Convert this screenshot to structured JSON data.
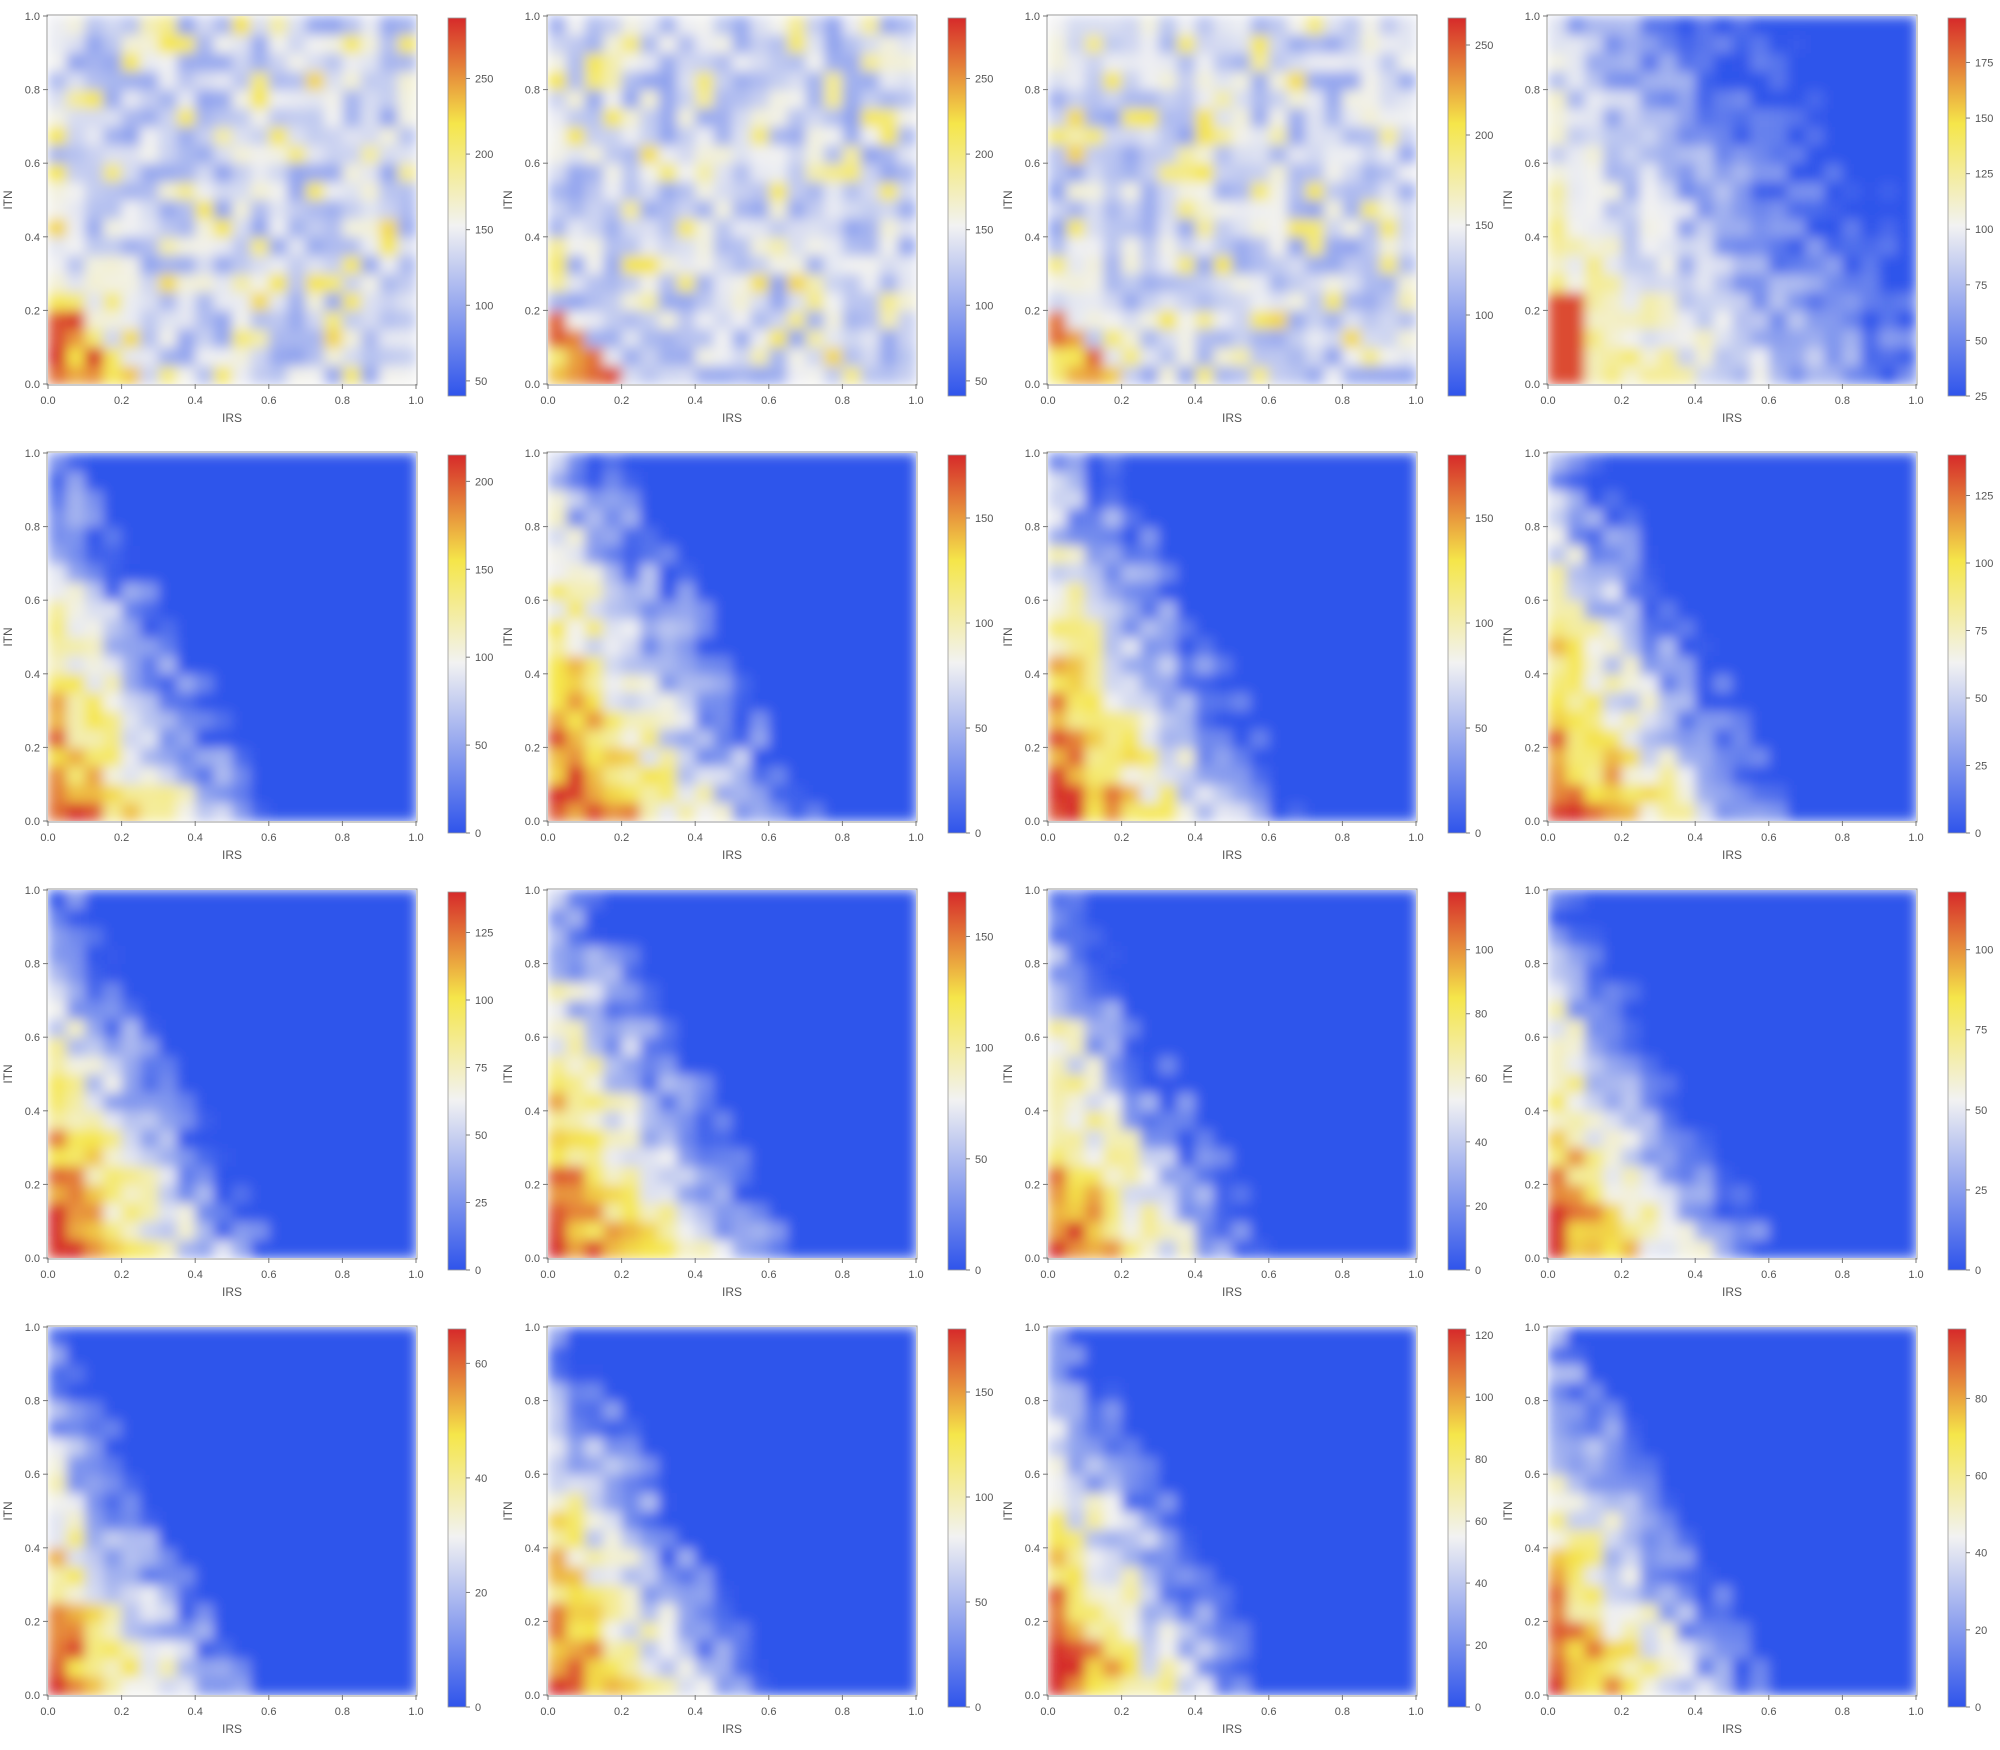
{
  "chart_data": [
    {
      "type": "heatmap",
      "xlabel": "IRS",
      "ylabel": "ITN",
      "xlim": [
        0,
        1
      ],
      "ylim": [
        0,
        1
      ],
      "x_ticks": [
        "0.0",
        "0.2",
        "0.4",
        "0.6",
        "0.8",
        "1.0"
      ],
      "y_ticks": [
        "0.0",
        "0.2",
        "0.4",
        "0.6",
        "0.8",
        "1.0"
      ],
      "colorbar": {
        "min": 40,
        "max": 290,
        "ticks": [
          50,
          100,
          150,
          200,
          250
        ]
      },
      "pattern": "noisy",
      "hot_region": 0.3
    },
    {
      "type": "heatmap",
      "xlabel": "IRS",
      "ylabel": "ITN",
      "xlim": [
        0,
        1
      ],
      "ylim": [
        0,
        1
      ],
      "x_ticks": [
        "0.0",
        "0.2",
        "0.4",
        "0.6",
        "0.8",
        "1.0"
      ],
      "y_ticks": [
        "0.0",
        "0.2",
        "0.4",
        "0.6",
        "0.8",
        "1.0"
      ],
      "colorbar": {
        "min": 40,
        "max": 290,
        "ticks": [
          50,
          100,
          150,
          200,
          250
        ]
      },
      "pattern": "noisy",
      "hot_region": 0.25
    },
    {
      "type": "heatmap",
      "xlabel": "IRS",
      "ylabel": "ITN",
      "xlim": [
        0,
        1
      ],
      "ylim": [
        0,
        1
      ],
      "x_ticks": [
        "0.0",
        "0.2",
        "0.4",
        "0.6",
        "0.8",
        "1.0"
      ],
      "y_ticks": [
        "0.0",
        "0.2",
        "0.4",
        "0.6",
        "0.8",
        "1.0"
      ],
      "colorbar": {
        "min": 55,
        "max": 265,
        "ticks": [
          100,
          150,
          200,
          250
        ]
      },
      "pattern": "noisy",
      "hot_region": 0.25
    },
    {
      "type": "heatmap",
      "xlabel": "IRS",
      "ylabel": "ITN",
      "xlim": [
        0,
        1
      ],
      "ylim": [
        0,
        1
      ],
      "x_ticks": [
        "0.0",
        "0.2",
        "0.4",
        "0.6",
        "0.8",
        "1.0"
      ],
      "y_ticks": [
        "0.0",
        "0.2",
        "0.4",
        "0.6",
        "0.8",
        "1.0"
      ],
      "colorbar": {
        "min": 25,
        "max": 195,
        "ticks": [
          25,
          50,
          75,
          100,
          125,
          150,
          175
        ]
      },
      "pattern": "gradient",
      "hot_region": 0.35
    },
    {
      "type": "heatmap",
      "xlabel": "IRS",
      "ylabel": "ITN",
      "xlim": [
        0,
        1
      ],
      "ylim": [
        0,
        1
      ],
      "x_ticks": [
        "0.0",
        "0.2",
        "0.4",
        "0.6",
        "0.8",
        "1.0"
      ],
      "y_ticks": [
        "0.0",
        "0.2",
        "0.4",
        "0.6",
        "0.8",
        "1.0"
      ],
      "colorbar": {
        "min": 0,
        "max": 215,
        "ticks": [
          0,
          50,
          100,
          150,
          200
        ]
      },
      "pattern": "decay",
      "hot_region": 0.55
    },
    {
      "type": "heatmap",
      "xlabel": "IRS",
      "ylabel": "ITN",
      "xlim": [
        0,
        1
      ],
      "ylim": [
        0,
        1
      ],
      "x_ticks": [
        "0.0",
        "0.2",
        "0.4",
        "0.6",
        "0.8",
        "1.0"
      ],
      "y_ticks": [
        "0.0",
        "0.2",
        "0.4",
        "0.6",
        "0.8",
        "1.0"
      ],
      "colorbar": {
        "min": 0,
        "max": 180,
        "ticks": [
          0,
          50,
          100,
          150
        ]
      },
      "pattern": "decay",
      "hot_region": 0.65
    },
    {
      "type": "heatmap",
      "xlabel": "IRS",
      "ylabel": "ITN",
      "xlim": [
        0,
        1
      ],
      "ylim": [
        0,
        1
      ],
      "x_ticks": [
        "0.0",
        "0.2",
        "0.4",
        "0.6",
        "0.8",
        "1.0"
      ],
      "y_ticks": [
        "0.0",
        "0.2",
        "0.4",
        "0.6",
        "0.8",
        "1.0"
      ],
      "colorbar": {
        "min": 0,
        "max": 180,
        "ticks": [
          0,
          50,
          100,
          150
        ]
      },
      "pattern": "decay",
      "hot_region": 0.62
    },
    {
      "type": "heatmap",
      "xlabel": "IRS",
      "ylabel": "ITN",
      "xlim": [
        0,
        1
      ],
      "ylim": [
        0,
        1
      ],
      "x_ticks": [
        "0.0",
        "0.2",
        "0.4",
        "0.6",
        "0.8",
        "1.0"
      ],
      "y_ticks": [
        "0.0",
        "0.2",
        "0.4",
        "0.6",
        "0.8",
        "1.0"
      ],
      "colorbar": {
        "min": 0,
        "max": 140,
        "ticks": [
          0,
          25,
          50,
          75,
          100,
          125
        ]
      },
      "pattern": "decay",
      "hot_region": 0.6
    },
    {
      "type": "heatmap",
      "xlabel": "IRS",
      "ylabel": "ITN",
      "xlim": [
        0,
        1
      ],
      "ylim": [
        0,
        1
      ],
      "x_ticks": [
        "0.0",
        "0.2",
        "0.4",
        "0.6",
        "0.8",
        "1.0"
      ],
      "y_ticks": [
        "0.0",
        "0.2",
        "0.4",
        "0.6",
        "0.8",
        "1.0"
      ],
      "colorbar": {
        "min": 0,
        "max": 140,
        "ticks": [
          0,
          25,
          50,
          75,
          100,
          125
        ]
      },
      "pattern": "decay",
      "hot_region": 0.55
    },
    {
      "type": "heatmap",
      "xlabel": "IRS",
      "ylabel": "ITN",
      "xlim": [
        0,
        1
      ],
      "ylim": [
        0,
        1
      ],
      "x_ticks": [
        "0.0",
        "0.2",
        "0.4",
        "0.6",
        "0.8",
        "1.0"
      ],
      "y_ticks": [
        "0.0",
        "0.2",
        "0.4",
        "0.6",
        "0.8",
        "1.0"
      ],
      "colorbar": {
        "min": 0,
        "max": 170,
        "ticks": [
          0,
          50,
          100,
          150
        ]
      },
      "pattern": "decay",
      "hot_region": 0.6
    },
    {
      "type": "heatmap",
      "xlabel": "IRS",
      "ylabel": "ITN",
      "xlim": [
        0,
        1
      ],
      "ylim": [
        0,
        1
      ],
      "x_ticks": [
        "0.0",
        "0.2",
        "0.4",
        "0.6",
        "0.8",
        "1.0"
      ],
      "y_ticks": [
        "0.0",
        "0.2",
        "0.4",
        "0.6",
        "0.8",
        "1.0"
      ],
      "colorbar": {
        "min": 0,
        "max": 118,
        "ticks": [
          0,
          20,
          40,
          60,
          80,
          100
        ]
      },
      "pattern": "decay",
      "hot_region": 0.55
    },
    {
      "type": "heatmap",
      "xlabel": "IRS",
      "ylabel": "ITN",
      "xlim": [
        0,
        1
      ],
      "ylim": [
        0,
        1
      ],
      "x_ticks": [
        "0.0",
        "0.2",
        "0.4",
        "0.6",
        "0.8",
        "1.0"
      ],
      "y_ticks": [
        "0.0",
        "0.2",
        "0.4",
        "0.6",
        "0.8",
        "1.0"
      ],
      "colorbar": {
        "min": 0,
        "max": 118,
        "ticks": [
          0,
          25,
          50,
          75,
          100
        ]
      },
      "pattern": "decay",
      "hot_region": 0.55
    },
    {
      "type": "heatmap",
      "xlabel": "IRS",
      "ylabel": "ITN",
      "xlim": [
        0,
        1
      ],
      "ylim": [
        0,
        1
      ],
      "x_ticks": [
        "0.0",
        "0.2",
        "0.4",
        "0.6",
        "0.8",
        "1.0"
      ],
      "y_ticks": [
        "0.0",
        "0.2",
        "0.4",
        "0.6",
        "0.8",
        "1.0"
      ],
      "colorbar": {
        "min": 0,
        "max": 66,
        "ticks": [
          0,
          20,
          40,
          60
        ]
      },
      "pattern": "decay",
      "hot_region": 0.5
    },
    {
      "type": "heatmap",
      "xlabel": "IRS",
      "ylabel": "ITN",
      "xlim": [
        0,
        1
      ],
      "ylim": [
        0,
        1
      ],
      "x_ticks": [
        "0.0",
        "0.2",
        "0.4",
        "0.6",
        "0.8",
        "1.0"
      ],
      "y_ticks": [
        "0.0",
        "0.2",
        "0.4",
        "0.6",
        "0.8",
        "1.0"
      ],
      "colorbar": {
        "min": 0,
        "max": 180,
        "ticks": [
          0,
          50,
          100,
          150
        ]
      },
      "pattern": "decay",
      "hot_region": 0.55
    },
    {
      "type": "heatmap",
      "xlabel": "IRS",
      "ylabel": "ITN",
      "xlim": [
        0,
        1
      ],
      "ylim": [
        0,
        1
      ],
      "x_ticks": [
        "0.0",
        "0.2",
        "0.4",
        "0.6",
        "0.8",
        "1.0"
      ],
      "y_ticks": [
        "0.0",
        "0.2",
        "0.4",
        "0.6",
        "0.8",
        "1.0"
      ],
      "colorbar": {
        "min": 0,
        "max": 122,
        "ticks": [
          0,
          20,
          40,
          60,
          80,
          100,
          120
        ]
      },
      "pattern": "decay",
      "hot_region": 0.55
    },
    {
      "type": "heatmap",
      "xlabel": "IRS",
      "ylabel": "ITN",
      "xlim": [
        0,
        1
      ],
      "ylim": [
        0,
        1
      ],
      "x_ticks": [
        "0.0",
        "0.2",
        "0.4",
        "0.6",
        "0.8",
        "1.0"
      ],
      "y_ticks": [
        "0.0",
        "0.2",
        "0.4",
        "0.6",
        "0.8",
        "1.0"
      ],
      "colorbar": {
        "min": 0,
        "max": 98,
        "ticks": [
          0,
          20,
          40,
          60,
          80
        ]
      },
      "pattern": "decay",
      "hot_region": 0.55
    }
  ],
  "colors": {
    "low": "#2f54eb",
    "mid": "#f2f2f2",
    "high1": "#f5e64a",
    "high2": "#d62a2a",
    "frame": "#9a9a9a"
  }
}
